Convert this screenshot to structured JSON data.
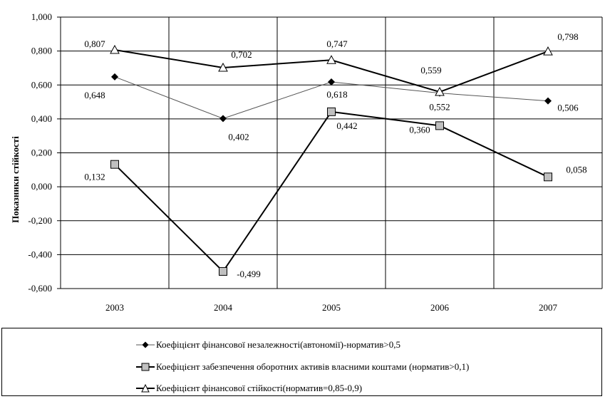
{
  "chart_data": {
    "type": "line",
    "ylabel": "Показники стійкості",
    "ylim": [
      -0.6,
      1.0
    ],
    "ytick_step": 0.2,
    "y_tick_labels": [
      "1,000",
      "0,800",
      "0,600",
      "0,400",
      "0,200",
      "0,000",
      "-0,200",
      "-0,400",
      "-0,600"
    ],
    "categories": [
      "2003",
      "2004",
      "2005",
      "2006",
      "2007"
    ],
    "grid": true,
    "legend_position": "bottom",
    "series": [
      {
        "name": "Коефіцієнт фінансової незалежності(автономії)-норматив>0,5",
        "marker": "diamond",
        "values": [
          0.648,
          0.402,
          0.618,
          0.552,
          0.506
        ],
        "labels": [
          "0,648",
          "0,402",
          "0,618",
          "0,552",
          "0,506"
        ],
        "color": "#555555"
      },
      {
        "name": "Коефіцієнт забезпечення оборотних активів власними коштами (норматив>0,1)",
        "marker": "square",
        "values": [
          0.132,
          -0.499,
          0.442,
          0.36,
          0.058
        ],
        "labels": [
          "0,132",
          "-0,499",
          "0,442",
          "0,360",
          "0,058"
        ],
        "color": "#000000"
      },
      {
        "name": "Коефіцієнт фінансової стійкості(норматив=0,85-0,9)",
        "marker": "triangle",
        "values": [
          0.807,
          0.702,
          0.747,
          0.559,
          0.798
        ],
        "labels": [
          "0,807",
          "0,702",
          "0,747",
          "0,559",
          "0,798"
        ],
        "color": "#000000"
      }
    ]
  },
  "legend": {
    "items": [
      {
        "marker": "diamond",
        "label": "Коефіцієнт фінансової незалежності(автономії)-норматив>0,5"
      },
      {
        "marker": "square",
        "label": "Коефіцієнт забезпечення оборотних активів власними коштами (норматив>0,1)"
      },
      {
        "marker": "triangle",
        "label": "Коефіцієнт фінансової стійкості(норматив=0,85-0,9)"
      }
    ]
  }
}
